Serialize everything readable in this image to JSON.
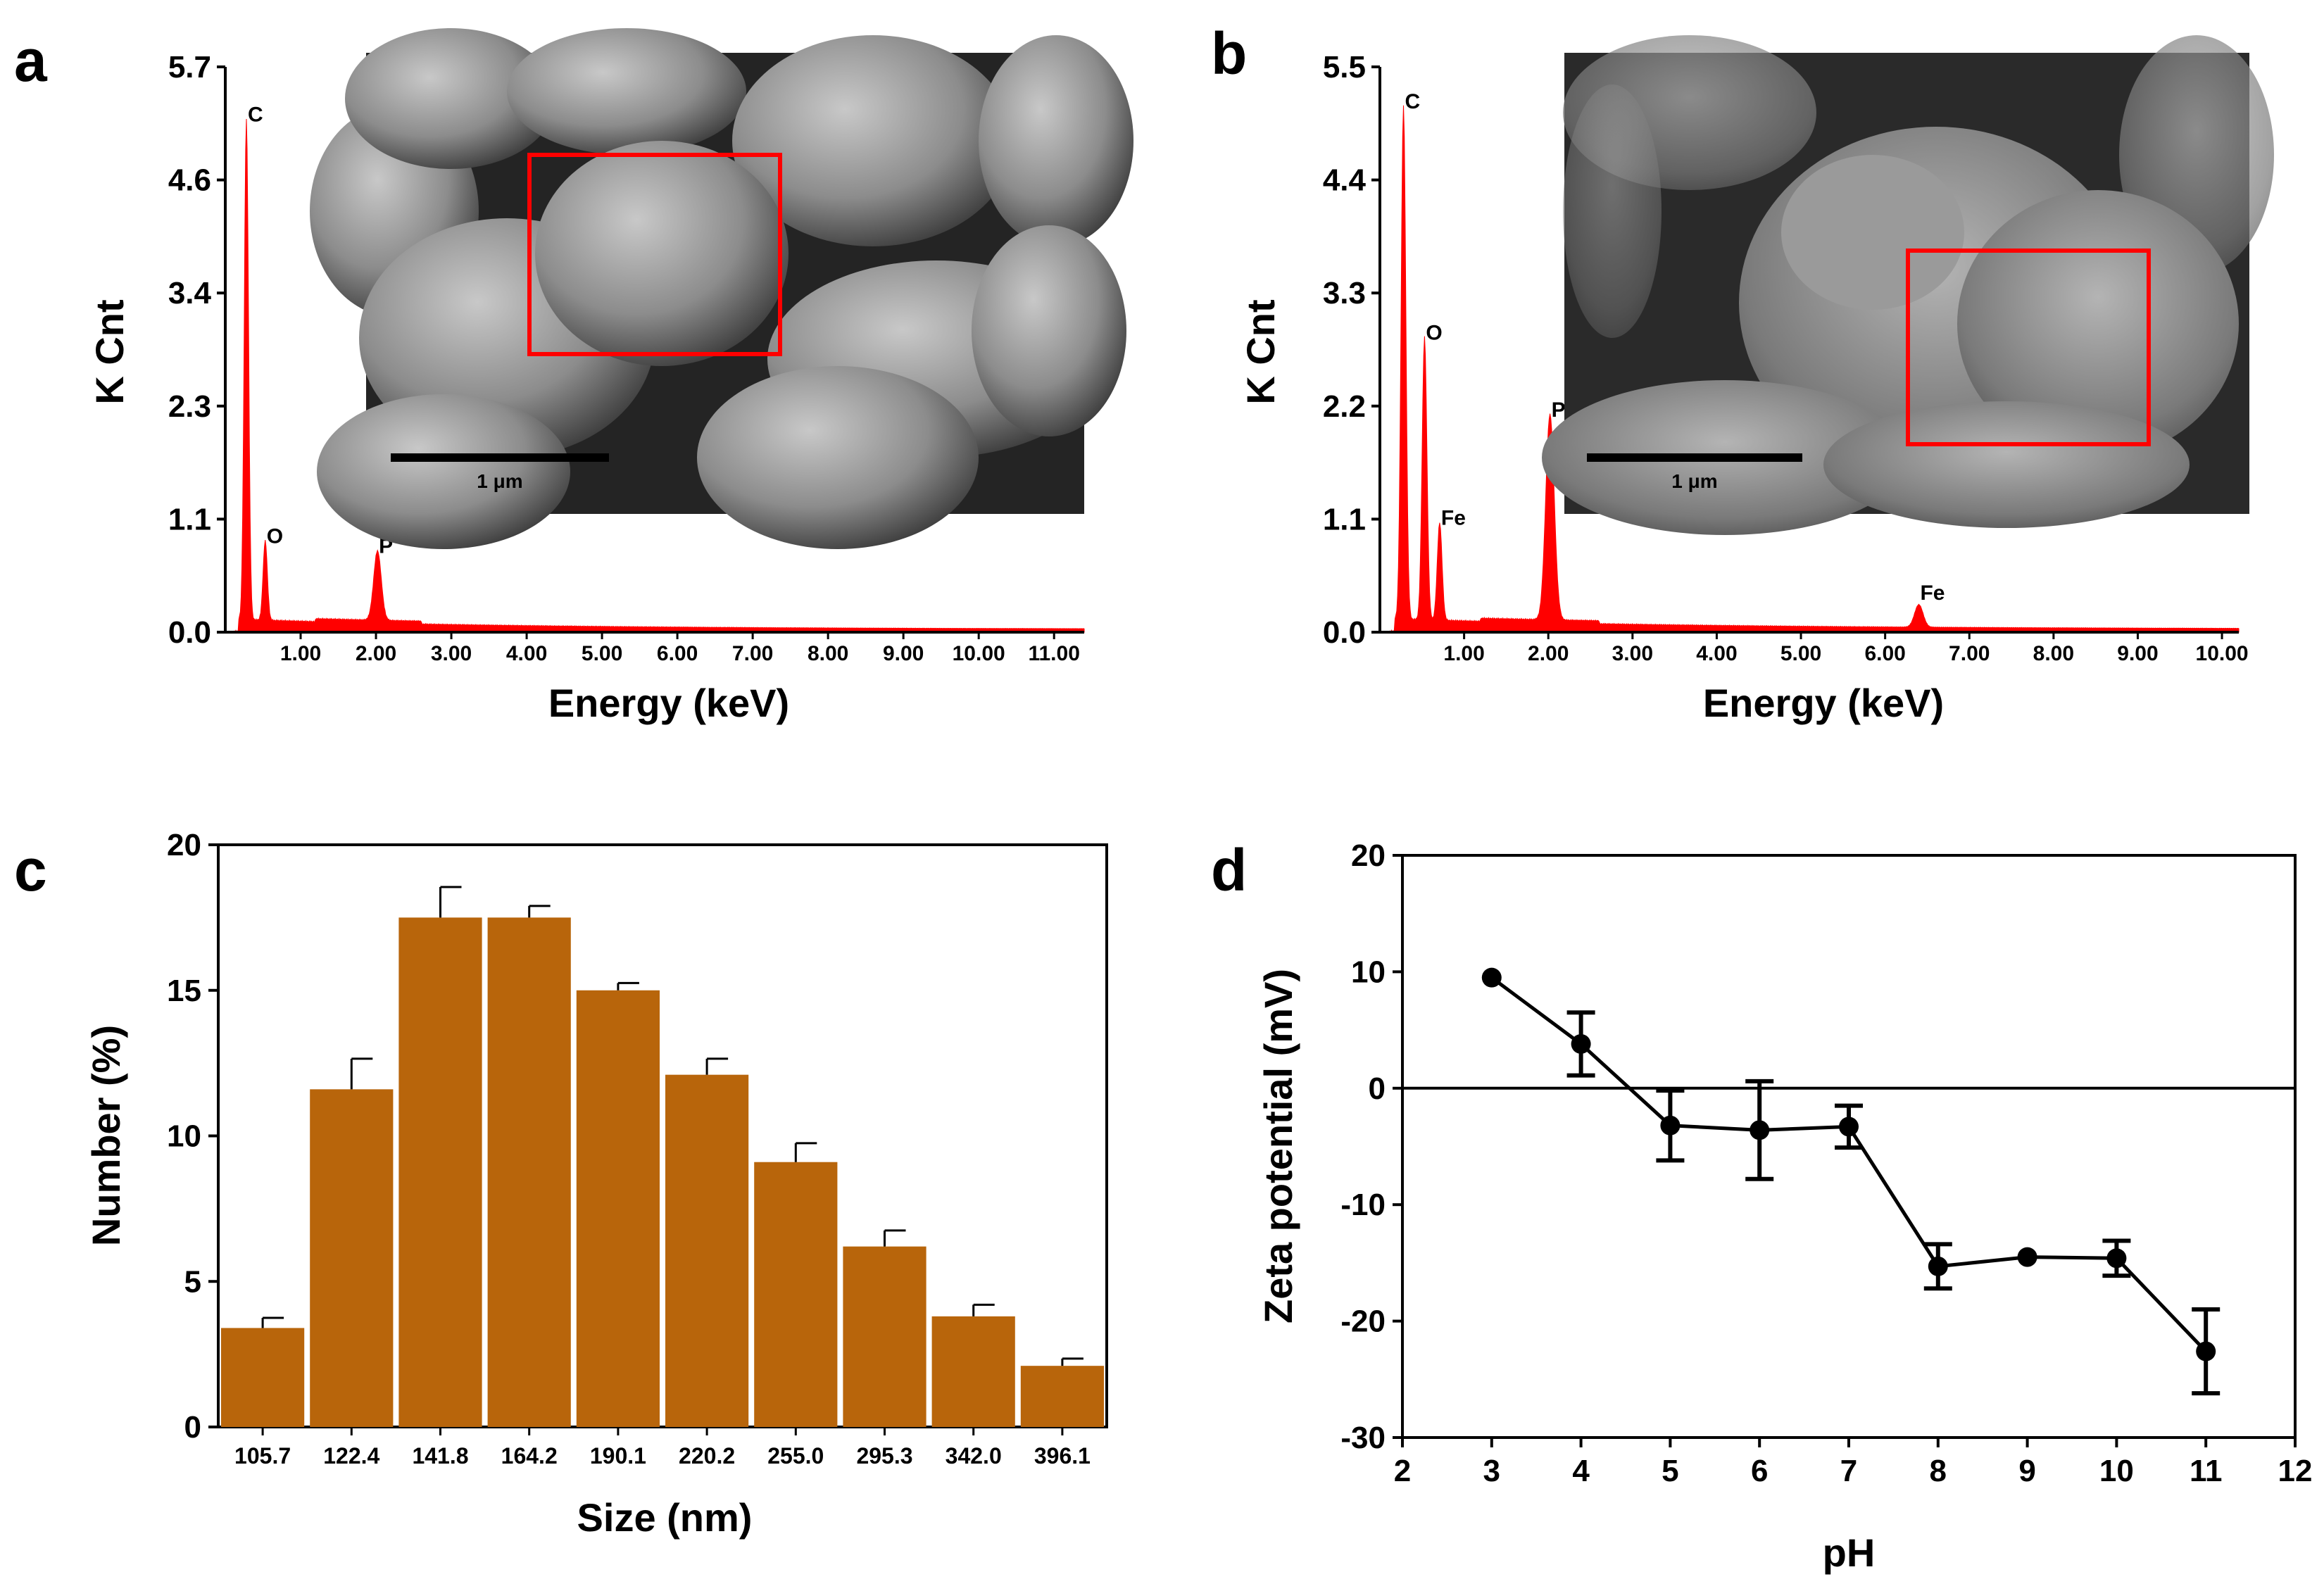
{
  "panel_labels": [
    "a",
    "b",
    "c",
    "d"
  ],
  "chart_data": [
    {
      "panel": "a",
      "type": "area",
      "xlabel": "Energy (keV)",
      "ylabel": "K Cnt",
      "xlim": [
        0,
        11.4
      ],
      "ylim": [
        0,
        5.7
      ],
      "y_ticks": [
        "0.0",
        "1.1",
        "2.3",
        "3.4",
        "4.6",
        "5.7"
      ],
      "x_ticks": [
        "1.00",
        "2.00",
        "3.00",
        "4.00",
        "5.00",
        "6.00",
        "7.00",
        "8.00",
        "9.00",
        "10.00",
        "11.00"
      ],
      "peaks": [
        {
          "label": "C",
          "energy": 0.28,
          "counts": 5.05
        },
        {
          "label": "O",
          "energy": 0.53,
          "counts": 0.8
        },
        {
          "label": "P",
          "energy": 2.02,
          "counts": 0.7
        }
      ],
      "inset": {
        "scale_bar": "1 μm"
      }
    },
    {
      "panel": "b",
      "type": "area",
      "xlabel": "Energy (keV)",
      "ylabel": "K Cnt",
      "xlim": [
        0,
        10.2
      ],
      "ylim": [
        0,
        5.5
      ],
      "y_ticks": [
        "0.0",
        "1.1",
        "2.2",
        "3.3",
        "4.4",
        "5.5"
      ],
      "x_ticks": [
        "1.00",
        "2.00",
        "3.00",
        "4.00",
        "5.00",
        "6.00",
        "7.00",
        "8.00",
        "9.00",
        "10.00"
      ],
      "peaks": [
        {
          "label": "C",
          "energy": 0.28,
          "counts": 5.0
        },
        {
          "label": "O",
          "energy": 0.53,
          "counts": 2.75
        },
        {
          "label": "Fe",
          "energy": 0.71,
          "counts": 0.95
        },
        {
          "label": "P",
          "energy": 2.02,
          "counts": 2.0
        },
        {
          "label": "Fe",
          "energy": 6.4,
          "counts": 0.22
        }
      ],
      "inset": {
        "scale_bar": "1 μm"
      }
    },
    {
      "panel": "c",
      "type": "bar",
      "xlabel": "Size (nm)",
      "ylabel": "Number (%)",
      "ylim": [
        0,
        20
      ],
      "y_ticks": [
        "0",
        "5",
        "10",
        "15",
        "20"
      ],
      "categories": [
        "105.7",
        "122.4",
        "141.8",
        "164.2",
        "190.1",
        "220.2",
        "255.0",
        "295.3",
        "342.0",
        "396.1"
      ],
      "values": [
        3.4,
        11.6,
        17.5,
        17.5,
        15.0,
        12.1,
        9.1,
        6.2,
        3.8,
        2.1
      ],
      "errors": [
        0.35,
        1.05,
        1.05,
        0.4,
        0.25,
        0.55,
        0.65,
        0.55,
        0.4,
        0.25
      ],
      "color": "#b8650b"
    },
    {
      "panel": "d",
      "type": "line",
      "xlabel": "pH",
      "ylabel": "Zeta potential (mV)",
      "xlim": [
        2,
        12
      ],
      "ylim": [
        -30,
        20
      ],
      "x_ticks": [
        "2",
        "3",
        "4",
        "5",
        "6",
        "7",
        "8",
        "9",
        "10",
        "11",
        "12"
      ],
      "y_ticks": [
        "-30",
        "-20",
        "-10",
        "0",
        "10",
        "20"
      ],
      "x": [
        3,
        4,
        5,
        6,
        7,
        8,
        9,
        10,
        11
      ],
      "y": [
        9.5,
        3.8,
        -3.2,
        -3.6,
        -3.3,
        -15.3,
        -14.5,
        -14.6,
        -22.6
      ],
      "errors": [
        0,
        2.7,
        3.0,
        4.2,
        1.8,
        1.9,
        0,
        1.5,
        3.6
      ],
      "zero_line": true
    }
  ],
  "colors": {
    "spectrum": "#ff0000",
    "bar": "#b8650b",
    "box": "#ff0000"
  }
}
